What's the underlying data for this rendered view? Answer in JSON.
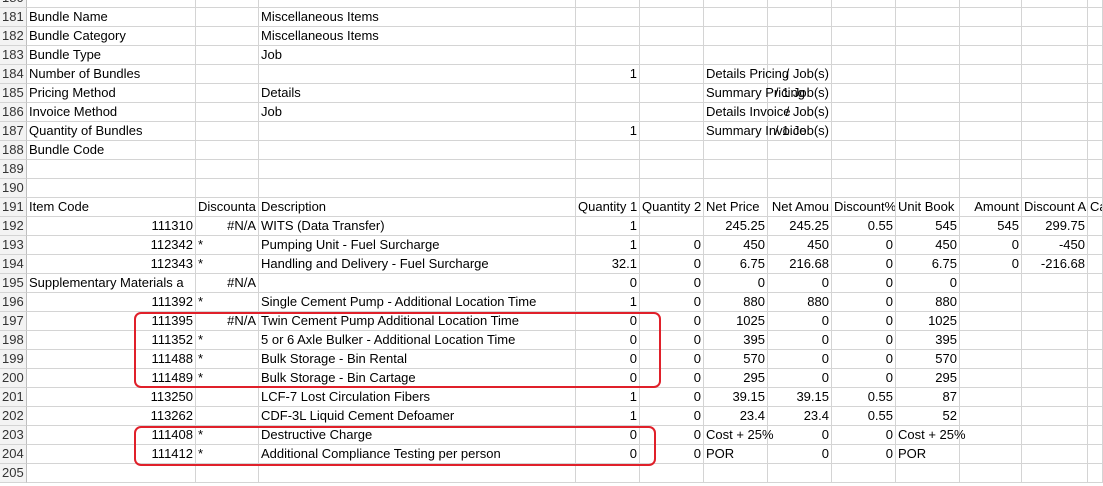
{
  "columns": [
    "",
    "",
    "",
    "",
    "",
    "",
    "",
    "",
    "",
    "",
    "",
    "",
    ""
  ],
  "rows": [
    {
      "num": "180",
      "cells": [
        "",
        "",
        "",
        "",
        "",
        "",
        "",
        "",
        "",
        "",
        "",
        "",
        ""
      ]
    },
    {
      "num": "181",
      "cells": [
        "Bundle Name",
        "",
        "Miscellaneous Items",
        "",
        "",
        "",
        "",
        "",
        "",
        "",
        "",
        "",
        ""
      ]
    },
    {
      "num": "182",
      "cells": [
        "Bundle Category",
        "",
        "Miscellaneous Items",
        "",
        "",
        "",
        "",
        "",
        "",
        "",
        "",
        "",
        ""
      ]
    },
    {
      "num": "183",
      "cells": [
        "Bundle Type",
        "",
        "Job",
        "",
        "",
        "",
        "",
        "",
        "",
        "",
        "",
        "",
        ""
      ]
    },
    {
      "num": "184",
      "cells": [
        "Number of Bundles",
        "",
        "",
        "1",
        "",
        "Details Pricing",
        "/ Job(s)",
        "",
        "",
        "",
        "",
        "",
        ""
      ]
    },
    {
      "num": "185",
      "cells": [
        "Pricing Method",
        "",
        "Details",
        "",
        "",
        "Summary Pricing",
        "/ 1 Job(s)",
        "",
        "",
        "",
        "",
        "",
        ""
      ]
    },
    {
      "num": "186",
      "cells": [
        "Invoice Method",
        "",
        "Job",
        "",
        "",
        "Details Invoice",
        "/ Job(s)",
        "",
        "",
        "",
        "",
        "",
        ""
      ]
    },
    {
      "num": "187",
      "cells": [
        "Quantity of Bundles",
        "",
        "",
        "1",
        "",
        "Summary Invoice",
        "/ 1 Job(s)",
        "",
        "",
        "",
        "",
        "",
        ""
      ]
    },
    {
      "num": "188",
      "cells": [
        "Bundle Code",
        "",
        "",
        "",
        "",
        "",
        "",
        "",
        "",
        "",
        "",
        "",
        ""
      ]
    },
    {
      "num": "189",
      "cells": [
        "",
        "",
        "",
        "",
        "",
        "",
        "",
        "",
        "",
        "",
        "",
        "",
        ""
      ]
    },
    {
      "num": "190",
      "cells": [
        "",
        "",
        "",
        "",
        "",
        "",
        "",
        "",
        "",
        "",
        "",
        "",
        ""
      ]
    },
    {
      "num": "191",
      "cells": [
        "Item Code",
        "Discounta",
        "Description",
        "Quantity 1",
        "Quantity 2",
        "Net Price",
        "Net Amou",
        "Discount%",
        "Unit Book",
        "Amount",
        "Discount A",
        "Ca",
        ""
      ]
    },
    {
      "num": "192",
      "cells": [
        "111310",
        "#N/A",
        "WITS (Data Transfer)",
        "1",
        "",
        "245.25",
        "245.25",
        "0.55",
        "545",
        "545",
        "299.75",
        "",
        ""
      ]
    },
    {
      "num": "193",
      "cells": [
        "112342",
        "*",
        "Pumping Unit - Fuel Surcharge",
        "1",
        "0",
        "450",
        "450",
        "0",
        "450",
        "0",
        "-450",
        "",
        ""
      ]
    },
    {
      "num": "194",
      "cells": [
        "112343",
        "*",
        "Handling and Delivery - Fuel Surcharge",
        "32.1",
        "0",
        "6.75",
        "216.68",
        "0",
        "6.75",
        "0",
        "-216.68",
        "",
        ""
      ]
    },
    {
      "num": "195",
      "cells": [
        "Supplementary Materials a",
        "#N/A",
        "",
        "0",
        "0",
        "0",
        "0",
        "0",
        "0",
        "",
        "",
        "",
        ""
      ]
    },
    {
      "num": "196",
      "cells": [
        "111392",
        "*",
        "Single Cement Pump - Additional Location Time",
        "1",
        "0",
        "880",
        "880",
        "0",
        "880",
        "",
        "",
        "",
        ""
      ]
    },
    {
      "num": "197",
      "cells": [
        "111395",
        "#N/A",
        "Twin Cement Pump Additional Location Time",
        "0",
        "0",
        "1025",
        "0",
        "0",
        "1025",
        "",
        "",
        "",
        ""
      ]
    },
    {
      "num": "198",
      "cells": [
        "111352",
        "*",
        "5 or 6 Axle Bulker - Additional Location Time",
        "0",
        "0",
        "395",
        "0",
        "0",
        "395",
        "",
        "",
        "",
        ""
      ]
    },
    {
      "num": "199",
      "cells": [
        "111488",
        "*",
        "Bulk Storage - Bin Rental",
        "0",
        "0",
        "570",
        "0",
        "0",
        "570",
        "",
        "",
        "",
        ""
      ]
    },
    {
      "num": "200",
      "cells": [
        "111489",
        "*",
        "Bulk Storage - Bin Cartage",
        "0",
        "0",
        "295",
        "0",
        "0",
        "295",
        "",
        "",
        "",
        ""
      ]
    },
    {
      "num": "201",
      "cells": [
        "113250",
        "",
        "LCF-7 Lost Circulation Fibers",
        "1",
        "0",
        "39.15",
        "39.15",
        "0.55",
        "87",
        "",
        "",
        "",
        ""
      ]
    },
    {
      "num": "202",
      "cells": [
        "113262",
        "",
        "CDF-3L Liquid Cement Defoamer",
        "1",
        "0",
        "23.4",
        "23.4",
        "0.55",
        "52",
        "",
        "",
        "",
        ""
      ]
    },
    {
      "num": "203",
      "cells": [
        "111408",
        "*",
        "Destructive Charge",
        "0",
        "0",
        "Cost + 25%",
        "0",
        "0",
        "Cost + 25%",
        "",
        "",
        "",
        ""
      ]
    },
    {
      "num": "204",
      "cells": [
        "111412",
        "*",
        "Additional Compliance Testing per person",
        "0",
        "0",
        "POR",
        "0",
        "0",
        "POR",
        "",
        "",
        "",
        ""
      ]
    },
    {
      "num": "205",
      "cells": [
        "",
        "",
        "",
        "",
        "",
        "",
        "",
        "",
        "",
        "",
        "",
        "",
        ""
      ]
    }
  ]
}
